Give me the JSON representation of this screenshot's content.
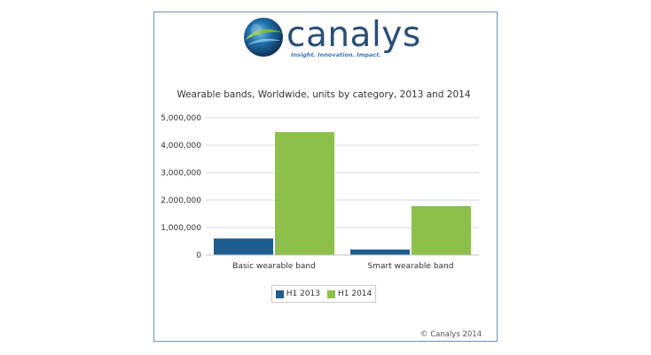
{
  "logo": {
    "wordmark": "canalys",
    "tagline": "Insight. Innovation. Impact."
  },
  "credit": "© Canalys 2014",
  "colors": {
    "h1_2013": "#1f5c8f",
    "h1_2014": "#8cc04a",
    "grid": "#d9d9d9",
    "frame": "#6f8fb8"
  },
  "chart_data": {
    "type": "bar",
    "title": "Wearable bands, Worldwide, units by category, 2013 and 2014",
    "xlabel": "",
    "ylabel": "",
    "categories": [
      "Basic wearable band",
      "Smart wearable band"
    ],
    "series": [
      {
        "name": "H1 2013",
        "values": [
          600000,
          200000
        ]
      },
      {
        "name": "H1 2014",
        "values": [
          4480000,
          1780000
        ]
      }
    ],
    "ylim": [
      0,
      5000000
    ],
    "yticks": [
      "0",
      "1,000,000",
      "2,000,000",
      "3,000,000",
      "4,000,000",
      "5,000,000"
    ],
    "grid": true,
    "legend_position": "bottom"
  }
}
